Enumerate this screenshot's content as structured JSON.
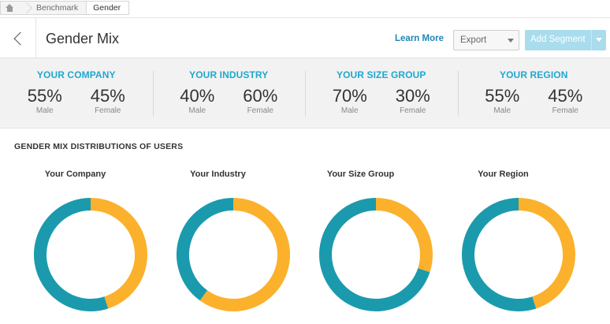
{
  "breadcrumb": {
    "items": [
      "Benchmark",
      "Gender"
    ]
  },
  "header": {
    "title": "Gender Mix",
    "learn_more": "Learn More",
    "export_label": "Export",
    "add_segment_label": "Add Segment"
  },
  "colors": {
    "male": "#1b9aad",
    "female": "#fbb12b",
    "accent": "#1ea8cf"
  },
  "summary": [
    {
      "title": "YOUR COMPANY",
      "male": "55%",
      "female": "45%",
      "male_label": "Male",
      "female_label": "Female"
    },
    {
      "title": "YOUR INDUSTRY",
      "male": "40%",
      "female": "60%",
      "male_label": "Male",
      "female_label": "Female"
    },
    {
      "title": "YOUR SIZE GROUP",
      "male": "70%",
      "female": "30%",
      "male_label": "Male",
      "female_label": "Female"
    },
    {
      "title": "YOUR REGION",
      "male": "55%",
      "female": "45%",
      "male_label": "Male",
      "female_label": "Female"
    }
  ],
  "distribution_title": "GENDER MIX DISTRIBUTIONS OF USERS",
  "chart_data": [
    {
      "type": "pie",
      "title": "Your Company",
      "categories": [
        "Male",
        "Female"
      ],
      "values": [
        55,
        45
      ]
    },
    {
      "type": "pie",
      "title": "Your Industry",
      "categories": [
        "Male",
        "Female"
      ],
      "values": [
        40,
        60
      ]
    },
    {
      "type": "pie",
      "title": "Your Size Group",
      "categories": [
        "Male",
        "Female"
      ],
      "values": [
        70,
        30
      ]
    },
    {
      "type": "pie",
      "title": "Your Region",
      "categories": [
        "Male",
        "Female"
      ],
      "values": [
        55,
        45
      ]
    }
  ]
}
